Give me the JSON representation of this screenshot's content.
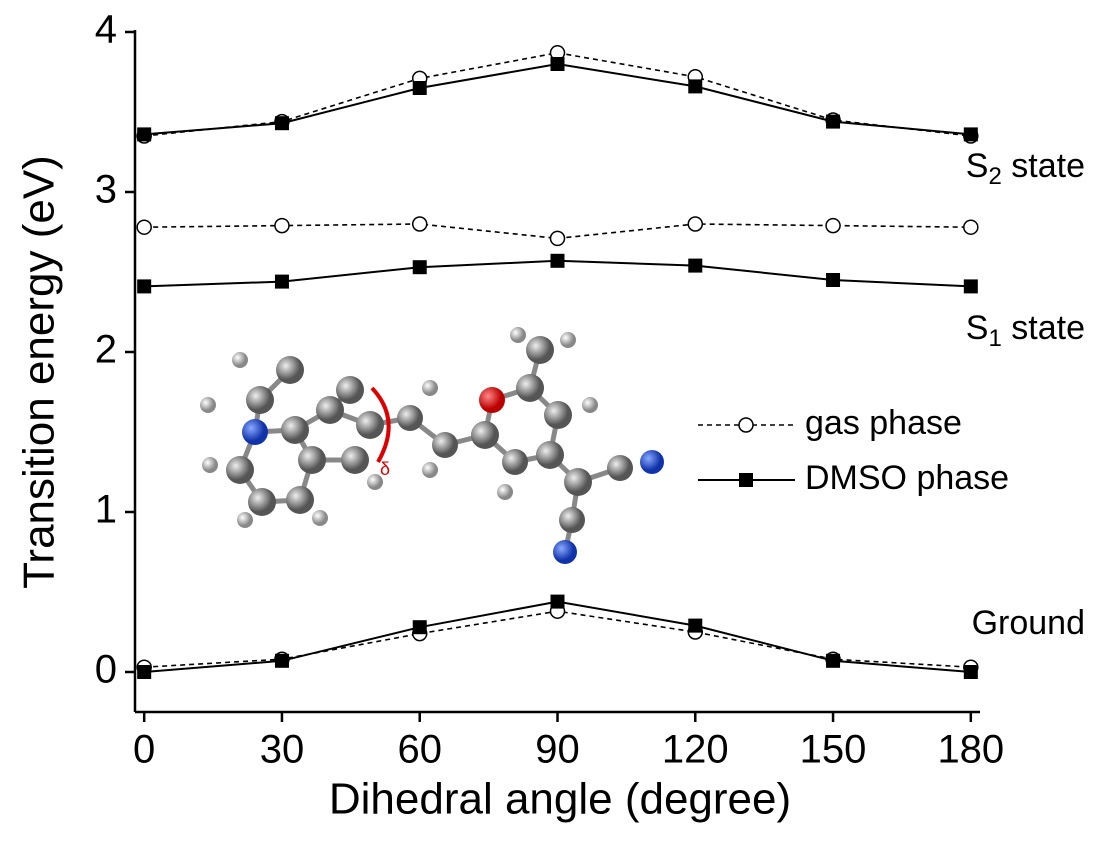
{
  "chart_data": {
    "type": "line",
    "x_label": "Dihedral angle (degree)",
    "y_label": "Transition energy (eV)",
    "x": [
      0,
      30,
      60,
      90,
      120,
      150,
      180
    ],
    "xlim": [
      -2,
      182
    ],
    "xticks": [
      0,
      30,
      60,
      90,
      120,
      150,
      180
    ],
    "ylim": [
      -0.25,
      4
    ],
    "yticks": [
      0,
      1,
      2,
      3,
      4
    ],
    "series": [
      {
        "name": "gas phase",
        "color": "#000000",
        "dashed": true,
        "marker": "open-circle",
        "curves": [
          [
            3.35,
            3.44,
            3.71,
            3.87,
            3.72,
            3.45,
            3.35
          ],
          [
            2.78,
            2.79,
            2.8,
            2.71,
            2.8,
            2.79,
            2.78
          ],
          [
            0.03,
            0.08,
            0.24,
            0.38,
            0.25,
            0.08,
            0.03
          ]
        ]
      },
      {
        "name": "DMSO phase",
        "color": "#000000",
        "dashed": false,
        "marker": "filled-square",
        "curves": [
          [
            3.36,
            3.43,
            3.65,
            3.8,
            3.66,
            3.44,
            3.36
          ],
          [
            2.41,
            2.44,
            2.53,
            2.57,
            2.54,
            2.45,
            2.41
          ],
          [
            0,
            0.07,
            0.28,
            0.44,
            0.29,
            0.07,
            0
          ]
        ]
      }
    ],
    "curve_labels": [
      {
        "text": "S",
        "sub": "2",
        "rest": " state"
      },
      {
        "text": "S",
        "sub": "1",
        "rest": " state"
      },
      {
        "text": "Ground"
      }
    ],
    "inset_label": "δ"
  }
}
